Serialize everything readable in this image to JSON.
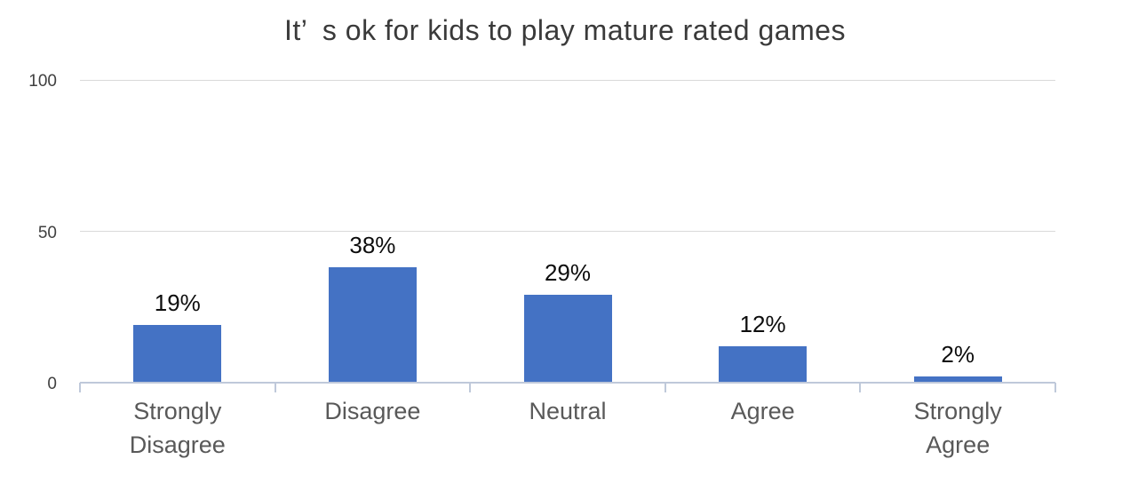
{
  "chart_data": {
    "type": "bar",
    "title": "It’ s ok for kids to play mature rated games",
    "categories": [
      "Strongly Disagree",
      "Disagree",
      "Neutral",
      "Agree",
      "Strongly Agree"
    ],
    "values": [
      19,
      38,
      29,
      12,
      2
    ],
    "data_labels": [
      "19%",
      "38%",
      "29%",
      "12%",
      "2%"
    ],
    "xlabel": "",
    "ylabel": "",
    "ylim": [
      0,
      100
    ],
    "y_ticks": [
      {
        "value": 100,
        "label": "100"
      },
      {
        "value": 50,
        "label": "50"
      },
      {
        "value": 0,
        "label": "0"
      }
    ],
    "grid": "horizontal-gridlines-on",
    "legend": "none",
    "colors": {
      "bar": "#4472C4",
      "gridline": "#d9d9d9",
      "axis_line": "#bfc9da",
      "title_text": "#3a3a3a",
      "y_tick_text": "#404040",
      "category_text": "#595959",
      "data_label_text": "#0d0d0d",
      "background": "#ffffff"
    }
  }
}
